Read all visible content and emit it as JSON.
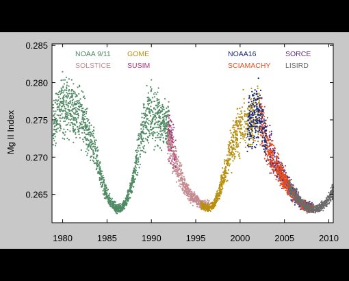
{
  "chart_data": {
    "type": "scatter",
    "ylabel": "Mg II Index",
    "xlim": [
      1978.8,
      2010.5
    ],
    "ylim": [
      0.2612,
      0.2852
    ],
    "x_ticks": [
      "1980",
      "1985",
      "1990",
      "1995",
      "2000",
      "2005",
      "2010"
    ],
    "y_ticks": [
      "0.265",
      "0.270",
      "0.275",
      "0.280",
      "0.285"
    ],
    "grid": false,
    "legend_position": "top",
    "series": [
      {
        "name": "NOAA 9/11",
        "color": "#4f8a63",
        "x_range": [
          1978.9,
          1992.3
        ],
        "x": [
          1978.9,
          1979.5,
          1980,
          1980.5,
          1981,
          1981.5,
          1982,
          1982.5,
          1983,
          1983.5,
          1984,
          1984.5,
          1985,
          1985.5,
          1986,
          1986.5,
          1987,
          1987.5,
          1988,
          1988.5,
          1989,
          1989.5,
          1990,
          1990.5,
          1991,
          1991.5,
          1992,
          1992.3
        ],
        "y": [
          0.2745,
          0.276,
          0.277,
          0.2768,
          0.2763,
          0.2758,
          0.2755,
          0.2742,
          0.2727,
          0.2712,
          0.269,
          0.2665,
          0.2648,
          0.2638,
          0.2632,
          0.2631,
          0.2636,
          0.265,
          0.2675,
          0.2705,
          0.2735,
          0.2755,
          0.276,
          0.2757,
          0.275,
          0.2745,
          0.2735,
          0.2725
        ]
      },
      {
        "name": "SOLSTICE",
        "color": "#c48b92",
        "x_range": [
          1991.8,
          1996.5
        ],
        "x": [
          1991.8,
          1992.5,
          1993,
          1993.5,
          1994,
          1994.5,
          1995,
          1995.5,
          1996,
          1996.5
        ],
        "y": [
          0.2725,
          0.2703,
          0.2683,
          0.2668,
          0.2656,
          0.2648,
          0.2643,
          0.2638,
          0.2635,
          0.2636
        ]
      },
      {
        "name": "GOME",
        "color": "#b8900f",
        "x_range": [
          1995.6,
          2002.2
        ],
        "x": [
          1995.6,
          1996,
          1996.5,
          1997,
          1997.5,
          1998,
          1998.5,
          1999,
          1999.5,
          2000,
          2000.5,
          2001,
          2001.5,
          2002,
          2002.2
        ],
        "y": [
          0.2636,
          0.2632,
          0.2631,
          0.2636,
          0.2648,
          0.2668,
          0.269,
          0.271,
          0.2728,
          0.2741,
          0.2748,
          0.2747,
          0.2752,
          0.2762,
          0.2758
        ]
      },
      {
        "name": "SUSIM",
        "color": "#b0307a",
        "x_range": [
          1991.9,
          1992.8
        ],
        "x": [
          1991.9,
          1992.3,
          1992.8
        ],
        "y": [
          0.2728,
          0.2718,
          0.2703
        ]
      },
      {
        "name": "NOAA16",
        "color": "#1a2a7a",
        "x_range": [
          2000.8,
          2003.0
        ],
        "x": [
          2000.8,
          2001.2,
          2001.6,
          2002,
          2002.4,
          2002.8,
          2003
        ],
        "y": [
          0.2745,
          0.2748,
          0.2755,
          0.2762,
          0.275,
          0.2735,
          0.2722
        ]
      },
      {
        "name": "SCIAMACHY",
        "color": "#e84e1a",
        "x_range": [
          2002.2,
          2008.2
        ],
        "x": [
          2002.2,
          2002.6,
          2003,
          2003.5,
          2004,
          2004.5,
          2005,
          2005.5,
          2006,
          2006.5,
          2007,
          2007.5,
          2008,
          2008.2
        ],
        "y": [
          0.2758,
          0.274,
          0.2718,
          0.2703,
          0.269,
          0.2681,
          0.267,
          0.266,
          0.2651,
          0.2643,
          0.2637,
          0.2633,
          0.2631,
          0.2631
        ]
      },
      {
        "name": "SORCE",
        "color": "#5a2a8a",
        "x_range": [
          2003.3,
          2008.3
        ],
        "x": [
          2003.3,
          2004,
          2005,
          2006,
          2007,
          2008.3
        ],
        "y": [
          0.2712,
          0.269,
          0.267,
          0.2651,
          0.2637,
          0.2631
        ]
      },
      {
        "name": "LISIRD",
        "color": "#6b6b6b",
        "x_range": [
          2005.5,
          2010.5
        ],
        "x": [
          2005.5,
          2006,
          2006.5,
          2007,
          2007.5,
          2008,
          2008.5,
          2009,
          2009.5,
          2010,
          2010.5
        ],
        "y": [
          0.266,
          0.2652,
          0.2645,
          0.2638,
          0.2633,
          0.2631,
          0.263,
          0.2632,
          0.2636,
          0.2645,
          0.2655
        ]
      }
    ]
  }
}
